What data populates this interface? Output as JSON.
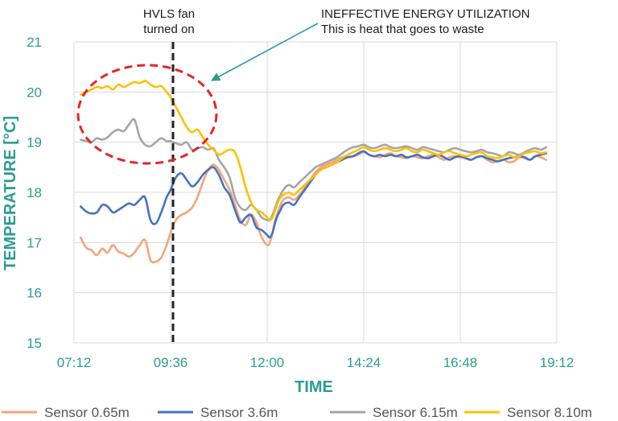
{
  "chart_data": {
    "type": "line",
    "xlabel": "TIME",
    "ylabel": "TEMPERATURE [°C]",
    "ylim": [
      15,
      21
    ],
    "y_ticks": [
      "15",
      "16",
      "17",
      "18",
      "19",
      "20",
      "21"
    ],
    "xlim_minutes": [
      432,
      1152
    ],
    "x_ticks": [
      {
        "label": "07:12",
        "minutes": 432
      },
      {
        "label": "09:36",
        "minutes": 576
      },
      {
        "label": "12:00",
        "minutes": 720
      },
      {
        "label": "14:24",
        "minutes": 864
      },
      {
        "label": "16:48",
        "minutes": 1008
      },
      {
        "label": "19:12",
        "minutes": 1152
      }
    ],
    "grid": true,
    "legend_position": "bottom",
    "series": [
      {
        "name": "Sensor 0.65m",
        "color": "#f4a57a",
        "x": [
          442,
          450,
          458,
          466,
          474,
          482,
          490,
          498,
          506,
          514,
          522,
          530,
          538,
          546,
          554,
          562,
          570,
          576,
          584,
          592,
          600,
          608,
          616,
          624,
          632,
          640,
          648,
          656,
          664,
          672,
          680,
          688,
          696,
          704,
          712,
          720,
          724,
          728,
          732,
          736,
          740,
          744,
          752,
          760,
          768,
          776,
          784,
          792,
          800,
          808,
          816,
          824,
          832,
          840,
          848,
          856,
          864,
          872,
          880,
          888,
          896,
          904,
          912,
          920,
          928,
          936,
          944,
          952,
          960,
          968,
          976,
          984,
          992,
          1000,
          1008,
          1016,
          1024,
          1032,
          1040,
          1048,
          1056,
          1064,
          1072,
          1080,
          1088,
          1096,
          1104,
          1112,
          1120,
          1128,
          1136
        ],
        "y": [
          17.1,
          16.9,
          16.85,
          16.75,
          16.88,
          16.8,
          16.95,
          16.82,
          16.78,
          16.72,
          16.8,
          16.95,
          17.05,
          16.65,
          16.62,
          16.7,
          16.95,
          17.2,
          17.45,
          17.55,
          17.6,
          17.7,
          17.9,
          18.2,
          18.45,
          18.55,
          18.45,
          18.25,
          18.05,
          17.75,
          17.45,
          17.35,
          17.55,
          17.4,
          17.1,
          16.95,
          17.0,
          17.2,
          17.45,
          17.6,
          17.75,
          17.85,
          17.9,
          17.85,
          17.95,
          18.1,
          18.25,
          18.4,
          18.5,
          18.55,
          18.6,
          18.65,
          18.7,
          18.7,
          18.72,
          18.75,
          18.8,
          18.75,
          18.72,
          18.7,
          18.75,
          18.78,
          18.72,
          18.7,
          18.68,
          18.72,
          18.7,
          18.68,
          18.72,
          18.75,
          18.7,
          18.65,
          18.7,
          18.72,
          18.7,
          18.68,
          18.65,
          18.7,
          18.72,
          18.65,
          18.6,
          18.62,
          18.65,
          18.6,
          18.62,
          18.7,
          18.68,
          18.65,
          18.72,
          18.7,
          18.65
        ]
      },
      {
        "name": "Sensor 3.6m",
        "color": "#4472c4",
        "x": [
          442,
          450,
          458,
          466,
          474,
          482,
          490,
          498,
          506,
          514,
          522,
          530,
          538,
          546,
          554,
          562,
          570,
          576,
          584,
          592,
          600,
          608,
          616,
          624,
          632,
          640,
          648,
          656,
          664,
          672,
          680,
          688,
          696,
          704,
          712,
          720,
          724,
          728,
          732,
          736,
          740,
          744,
          752,
          760,
          768,
          776,
          784,
          792,
          800,
          808,
          816,
          824,
          832,
          840,
          848,
          856,
          864,
          872,
          880,
          888,
          896,
          904,
          912,
          920,
          928,
          936,
          944,
          952,
          960,
          968,
          976,
          984,
          992,
          1000,
          1008,
          1016,
          1024,
          1032,
          1040,
          1048,
          1056,
          1064,
          1072,
          1080,
          1088,
          1096,
          1104,
          1112,
          1120,
          1128,
          1136
        ],
        "y": [
          17.72,
          17.62,
          17.58,
          17.6,
          17.75,
          17.72,
          17.6,
          17.65,
          17.72,
          17.78,
          17.75,
          17.85,
          17.9,
          17.45,
          17.38,
          17.6,
          17.9,
          18.05,
          18.3,
          18.38,
          18.25,
          18.12,
          18.2,
          18.35,
          18.45,
          18.5,
          18.35,
          18.1,
          17.95,
          17.65,
          17.4,
          17.5,
          17.55,
          17.3,
          17.25,
          17.15,
          17.1,
          17.2,
          17.4,
          17.55,
          17.65,
          17.75,
          17.8,
          17.75,
          17.9,
          18.05,
          18.2,
          18.35,
          18.45,
          18.5,
          18.55,
          18.6,
          18.65,
          18.7,
          18.72,
          18.78,
          18.82,
          18.75,
          18.72,
          18.75,
          18.72,
          18.75,
          18.72,
          18.75,
          18.7,
          18.72,
          18.75,
          18.7,
          18.68,
          18.72,
          18.75,
          18.7,
          18.65,
          18.7,
          18.72,
          18.68,
          18.65,
          18.7,
          18.72,
          18.68,
          18.65,
          18.62,
          18.65,
          18.68,
          18.7,
          18.72,
          18.7,
          18.65,
          18.72,
          18.75,
          18.78
        ]
      },
      {
        "name": "Sensor 6.15m",
        "color": "#a5a5a5",
        "x": [
          442,
          450,
          458,
          466,
          474,
          482,
          490,
          498,
          506,
          514,
          522,
          530,
          538,
          546,
          554,
          562,
          570,
          576,
          584,
          592,
          600,
          608,
          616,
          624,
          632,
          640,
          648,
          656,
          664,
          672,
          680,
          688,
          696,
          704,
          712,
          720,
          724,
          728,
          732,
          736,
          740,
          744,
          752,
          760,
          768,
          776,
          784,
          792,
          800,
          808,
          816,
          824,
          832,
          840,
          848,
          856,
          864,
          872,
          880,
          888,
          896,
          904,
          912,
          920,
          928,
          936,
          944,
          952,
          960,
          968,
          976,
          984,
          992,
          1000,
          1008,
          1016,
          1024,
          1032,
          1040,
          1048,
          1056,
          1064,
          1072,
          1080,
          1088,
          1096,
          1104,
          1112,
          1120,
          1128,
          1136
        ],
        "y": [
          19.05,
          19.02,
          19.0,
          19.08,
          19.05,
          19.1,
          19.2,
          19.25,
          19.22,
          19.35,
          19.45,
          19.1,
          18.95,
          18.92,
          19.0,
          19.08,
          19.02,
          19.02,
          18.98,
          18.95,
          19.0,
          18.85,
          18.88,
          18.9,
          18.85,
          18.88,
          18.65,
          18.5,
          18.3,
          17.9,
          17.7,
          17.65,
          17.75,
          17.65,
          17.5,
          17.45,
          17.45,
          17.55,
          17.7,
          17.85,
          17.95,
          18.05,
          18.15,
          18.1,
          18.2,
          18.3,
          18.4,
          18.5,
          18.55,
          18.6,
          18.65,
          18.7,
          18.78,
          18.85,
          18.9,
          18.92,
          18.95,
          18.9,
          18.88,
          18.92,
          18.95,
          18.9,
          18.88,
          18.9,
          18.92,
          18.88,
          18.85,
          18.9,
          18.88,
          18.85,
          18.82,
          18.8,
          18.85,
          18.88,
          18.85,
          18.82,
          18.8,
          18.82,
          18.85,
          18.8,
          18.78,
          18.75,
          18.72,
          18.8,
          18.78,
          18.75,
          18.8,
          18.85,
          18.88,
          18.85,
          18.9
        ]
      },
      {
        "name": "Sensor 8.10m",
        "color": "#ffc000",
        "x": [
          442,
          450,
          458,
          466,
          474,
          482,
          490,
          498,
          506,
          514,
          522,
          530,
          538,
          546,
          554,
          562,
          570,
          576,
          584,
          592,
          600,
          608,
          616,
          624,
          632,
          640,
          648,
          656,
          664,
          672,
          680,
          688,
          696,
          704,
          712,
          720,
          724,
          728,
          732,
          736,
          740,
          744,
          752,
          760,
          768,
          776,
          784,
          792,
          800,
          808,
          816,
          824,
          832,
          840,
          848,
          856,
          864,
          872,
          880,
          888,
          896,
          904,
          912,
          920,
          928,
          936,
          944,
          952,
          960,
          968,
          976,
          984,
          992,
          1000,
          1008,
          1016,
          1024,
          1032,
          1040,
          1048,
          1056,
          1064,
          1072,
          1080,
          1088,
          1096,
          1104,
          1112,
          1120,
          1128,
          1136
        ],
        "y": [
          19.95,
          20.0,
          20.05,
          20.1,
          20.08,
          20.12,
          20.05,
          20.15,
          20.1,
          20.15,
          20.2,
          20.18,
          20.22,
          20.15,
          20.1,
          20.12,
          20.0,
          19.9,
          19.7,
          19.5,
          19.3,
          19.2,
          19.25,
          19.1,
          18.95,
          18.85,
          18.75,
          18.8,
          18.85,
          18.8,
          18.5,
          18.1,
          17.8,
          17.65,
          17.6,
          17.5,
          17.45,
          17.5,
          17.65,
          17.8,
          17.9,
          17.95,
          18.0,
          17.95,
          18.05,
          18.15,
          18.25,
          18.35,
          18.45,
          18.5,
          18.55,
          18.6,
          18.68,
          18.75,
          18.8,
          18.85,
          18.9,
          18.85,
          18.82,
          18.85,
          18.88,
          18.85,
          18.82,
          18.85,
          18.88,
          18.82,
          18.8,
          18.85,
          18.82,
          18.78,
          18.75,
          18.8,
          18.82,
          18.78,
          18.75,
          18.72,
          18.75,
          18.78,
          18.8,
          18.72,
          18.7,
          18.68,
          18.72,
          18.75,
          18.7,
          18.72,
          18.78,
          18.8,
          18.82,
          18.78,
          18.8
        ]
      }
    ],
    "annotations": {
      "fan_line": {
        "minutes": 576,
        "label_line1": "HVLS fan",
        "label_line2": "turned on",
        "color": "#222222"
      },
      "waste": {
        "label_line1": "INEFFECTIVE ENERGY UTILIZATION",
        "label_line2": "This is heat that goes to waste",
        "ellipse_color": "#e32626",
        "arrow_color": "#2a9d8f"
      }
    }
  }
}
